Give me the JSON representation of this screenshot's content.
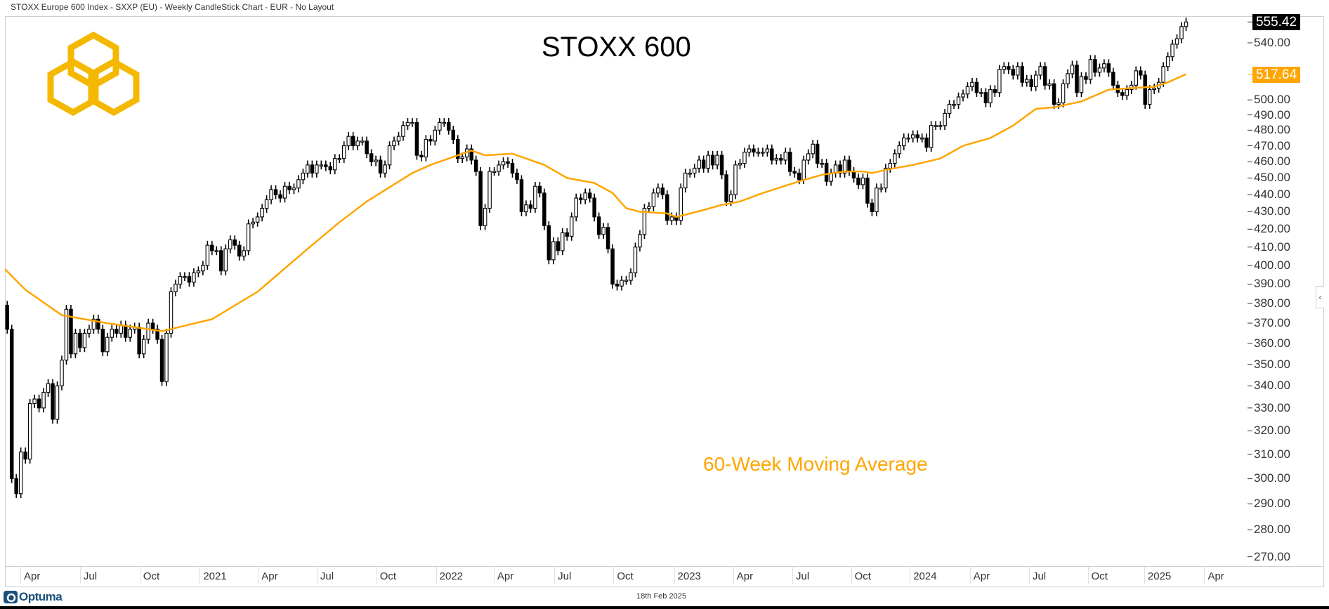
{
  "header": {
    "title": "STOXX Europe 600 Index - SXXP (EU) - Weekly CandleStick Chart - EUR - No Layout"
  },
  "footer": {
    "date": "18th Feb 2025",
    "brand": "Optuma"
  },
  "logo": {
    "text": "logo"
  },
  "colors": {
    "ma": "#FFA500",
    "logo": "#F5B800",
    "up_fill": "#ffffff",
    "down_fill": "#000000",
    "last_price_bg": "#000000",
    "optuma": "#1d4f7c"
  },
  "chart_data": {
    "type": "candlestick",
    "title": "STOXX 600",
    "annotation": "60-Week Moving Average",
    "xlabel": "",
    "ylabel": "",
    "y_scale": "log",
    "ylim": [
      266.6,
      559.8
    ],
    "xlim_weeks": [
      -0.5,
      272.5
    ],
    "first_week": "2020-03-02",
    "last_week": "2025-02-17",
    "first_open": 379,
    "closes": [
      367,
      300,
      294,
      311,
      308,
      332,
      334,
      330,
      337,
      341,
      325,
      340,
      352,
      377,
      355,
      365,
      358,
      365,
      367,
      372,
      367,
      356,
      363,
      367,
      365,
      369,
      363,
      367,
      368,
      355,
      362,
      370,
      367,
      362,
      342,
      365,
      386,
      390,
      394,
      394,
      391,
      396,
      397,
      400,
      411,
      408,
      408,
      397,
      409,
      414,
      411,
      405,
      408,
      423,
      424,
      427,
      432,
      437,
      443,
      440,
      438,
      445,
      443,
      444,
      449,
      453,
      458,
      453,
      458,
      458,
      457,
      455,
      462,
      462,
      470,
      476,
      470,
      473,
      473,
      465,
      460,
      461,
      453,
      458,
      470,
      473,
      476,
      483,
      485,
      485,
      464,
      463,
      474,
      473,
      480,
      485,
      485,
      480,
      474,
      462,
      463,
      468,
      461,
      454,
      422,
      432,
      454,
      454,
      458,
      460,
      459,
      453,
      449,
      430,
      434,
      432,
      445,
      441,
      422,
      403,
      413,
      408,
      418,
      416,
      427,
      438,
      437,
      441,
      438,
      427,
      417,
      421,
      409,
      390,
      389,
      392,
      392,
      396,
      410,
      417,
      432,
      433,
      441,
      444,
      440,
      425,
      427,
      425,
      444,
      453,
      453,
      456,
      461,
      456,
      464,
      458,
      464,
      452,
      436,
      440,
      458,
      459,
      466,
      468,
      466,
      466,
      466,
      468,
      461,
      462,
      461,
      466,
      454,
      453,
      449,
      461,
      465,
      471,
      459,
      459,
      448,
      453,
      458,
      453,
      461,
      454,
      450,
      446,
      450,
      435,
      430,
      444,
      444,
      456,
      459,
      465,
      470,
      475,
      475,
      477,
      475,
      475,
      469,
      483,
      483,
      483,
      491,
      497,
      497,
      502,
      504,
      509,
      512,
      505,
      505,
      498,
      507,
      505,
      521,
      523,
      521,
      517,
      523,
      512,
      514,
      509,
      517,
      523,
      510,
      511,
      497,
      498,
      511,
      518,
      524,
      505,
      516,
      514,
      528,
      519,
      522,
      525,
      519,
      510,
      505,
      503,
      507,
      510,
      520,
      517,
      497,
      507,
      508,
      512,
      523,
      530,
      539,
      543,
      552,
      555.42
    ],
    "moving_average": {
      "name": "60-Week Moving Average",
      "period": 60,
      "points": [
        [
          -0.5,
          398
        ],
        [
          4,
          387
        ],
        [
          12,
          374
        ],
        [
          22,
          370
        ],
        [
          34,
          366
        ],
        [
          45,
          372
        ],
        [
          55,
          386
        ],
        [
          66,
          409
        ],
        [
          73,
          424
        ],
        [
          79,
          436
        ],
        [
          89,
          453
        ],
        [
          93,
          458
        ],
        [
          99,
          464
        ],
        [
          102,
          467
        ],
        [
          105,
          464
        ],
        [
          111,
          465
        ],
        [
          118,
          458
        ],
        [
          123,
          450
        ],
        [
          129,
          447
        ],
        [
          133,
          441
        ],
        [
          136,
          432
        ],
        [
          139,
          430
        ],
        [
          145,
          429
        ],
        [
          147,
          427
        ],
        [
          153,
          431
        ],
        [
          157,
          434
        ],
        [
          161,
          436
        ],
        [
          166,
          441
        ],
        [
          174,
          448
        ],
        [
          179,
          452
        ],
        [
          184,
          454
        ],
        [
          188,
          454
        ],
        [
          190,
          453
        ],
        [
          193,
          455
        ],
        [
          199,
          458
        ],
        [
          205,
          462
        ],
        [
          210,
          470
        ],
        [
          216,
          475
        ],
        [
          221,
          483
        ],
        [
          226,
          494
        ],
        [
          230,
          495
        ],
        [
          236,
          499
        ],
        [
          242,
          507
        ],
        [
          247,
          508
        ],
        [
          252,
          509
        ],
        [
          255,
          512
        ],
        [
          259,
          517.64
        ]
      ]
    },
    "last_price": "555.42",
    "last_ma": "517.64",
    "y_ticks": [
      "540.00",
      "500.00",
      "490.00",
      "480.00",
      "470.00",
      "460.00",
      "450.00",
      "440.00",
      "430.00",
      "420.00",
      "410.00",
      "400.00",
      "390.00",
      "380.00",
      "370.00",
      "360.00",
      "350.00",
      "340.00",
      "330.00",
      "320.00",
      "310.00",
      "300.00",
      "290.00",
      "280.00",
      "270.00"
    ],
    "x_ticks": [
      {
        "label": "Apr",
        "week": 2.9
      },
      {
        "label": "Jul",
        "week": 16
      },
      {
        "label": "Oct",
        "week": 29.1
      },
      {
        "label": "2021",
        "week": 42.3
      },
      {
        "label": "Apr",
        "week": 55.1
      },
      {
        "label": "Jul",
        "week": 68
      },
      {
        "label": "Oct",
        "week": 81.1
      },
      {
        "label": "2022",
        "week": 94.2
      },
      {
        "label": "Apr",
        "week": 106.9
      },
      {
        "label": "Jul",
        "week": 120.2
      },
      {
        "label": "Oct",
        "week": 133.2
      },
      {
        "label": "2023",
        "week": 146.5
      },
      {
        "label": "Apr",
        "week": 159.5
      },
      {
        "label": "Jul",
        "week": 172.5
      },
      {
        "label": "Oct",
        "week": 185.4
      },
      {
        "label": "2024",
        "week": 198.3
      },
      {
        "label": "Apr",
        "week": 211.5
      },
      {
        "label": "Jul",
        "week": 224.5
      },
      {
        "label": "Oct",
        "week": 237.4
      },
      {
        "label": "2025",
        "week": 249.8
      },
      {
        "label": "Apr",
        "week": 263
      }
    ],
    "grid": false,
    "legend": "none"
  }
}
